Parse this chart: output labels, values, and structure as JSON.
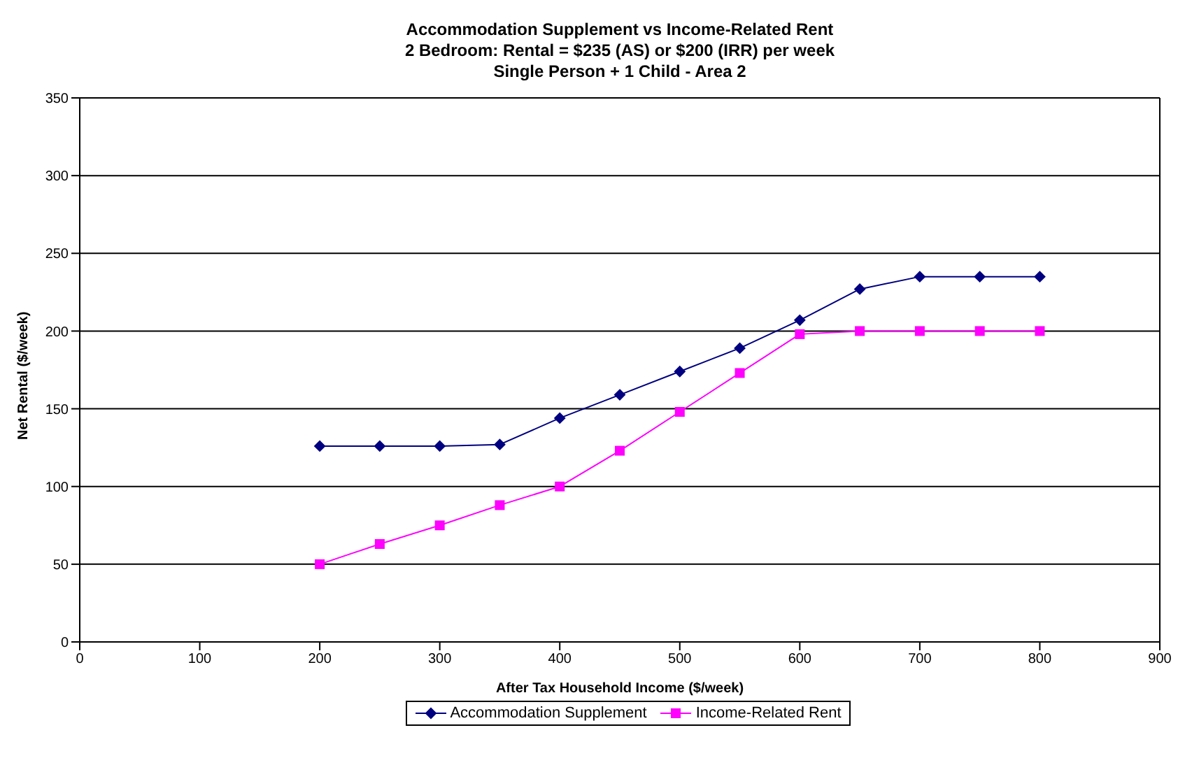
{
  "chart_data": {
    "type": "line",
    "title": "Accommodation Supplement vs Income-Related Rent",
    "subtitle": "2 Bedroom: Rental = $235 (AS) or $200 (IRR) per week\nSingle Person + 1 Child - Area 2",
    "xlabel": "After Tax Household Income ($/week)",
    "ylabel": "Net Rental ($/week)",
    "x": [
      200,
      250,
      300,
      350,
      400,
      450,
      500,
      550,
      600,
      650,
      700,
      750,
      800
    ],
    "series": [
      {
        "name": "Accommodation Supplement",
        "color": "#000080",
        "marker": "diamond",
        "values": [
          126,
          126,
          126,
          127,
          144,
          159,
          174,
          189,
          207,
          227,
          235,
          235,
          235
        ]
      },
      {
        "name": "Income-Related Rent",
        "color": "#ff00ff",
        "marker": "square",
        "values": [
          50,
          63,
          75,
          88,
          100,
          123,
          148,
          173,
          198,
          200,
          200,
          200,
          200
        ]
      }
    ],
    "xlim": [
      0,
      900
    ],
    "xticks": [
      0,
      100,
      200,
      300,
      400,
      500,
      600,
      700,
      800,
      900
    ],
    "ylim": [
      0,
      350
    ],
    "yticks": [
      0,
      50,
      100,
      150,
      200,
      250,
      300,
      350
    ],
    "grid": "y",
    "legend": "bottom",
    "line_style": "solid"
  }
}
